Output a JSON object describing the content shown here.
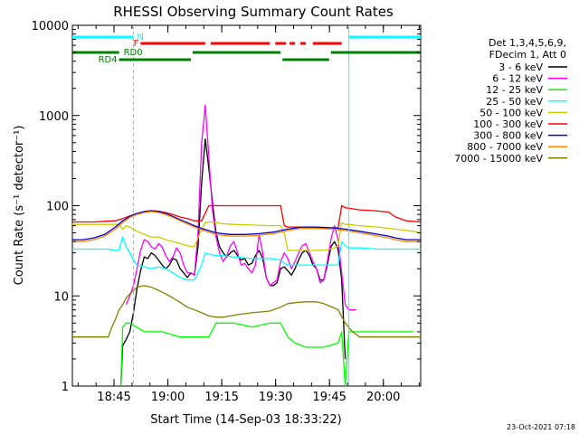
{
  "chart_data": {
    "type": "line",
    "title": "RHESSI Observing Summary Count Rates",
    "xlabel": "Start Time (14-Sep-03 18:33:22)",
    "ylabel": "Count Rate (s⁻¹ detector⁻¹)",
    "y_scale": "log",
    "ylim": [
      1,
      10000
    ],
    "xlim_minutes_since_start": [
      0,
      97
    ],
    "xticks": [
      {
        "label": "18:45",
        "minute": 11.6
      },
      {
        "label": "19:00",
        "minute": 26.6
      },
      {
        "label": "19:15",
        "minute": 41.6
      },
      {
        "label": "19:30",
        "minute": 56.6
      },
      {
        "label": "19:45",
        "minute": 71.6
      },
      {
        "label": "20:00",
        "minute": 86.6
      }
    ],
    "yticks": [
      "1",
      "10",
      "100",
      "1000",
      "10000"
    ],
    "legend_header": [
      "Det 1,3,4,5,6,9,",
      "FDecim 1, Att 0"
    ],
    "footer": "23-Oct-2021 07:18",
    "flags": [
      {
        "label": "N",
        "color": "#00FFFF",
        "segments": [
          [
            0,
            17
          ],
          [
            77,
            97
          ]
        ]
      },
      {
        "label": "F",
        "color": "#FF0000",
        "segments": [
          [
            19,
            37
          ],
          [
            38.5,
            55
          ],
          [
            56.5,
            59.5
          ],
          [
            60.5,
            62
          ],
          [
            63.5,
            65
          ],
          [
            67,
            75
          ]
        ]
      },
      {
        "label": "RD0",
        "color": "#008000",
        "segments": [
          [
            0,
            13
          ],
          [
            33.5,
            58
          ],
          [
            72,
            97
          ]
        ]
      },
      {
        "label": "RD4",
        "color": "#008000",
        "segments": [
          [
            13,
            33
          ],
          [
            58.5,
            71.5
          ]
        ]
      }
    ],
    "series": [
      {
        "name": "3 - 6 keV",
        "color": "#000000",
        "x": [
          13.5,
          14,
          15,
          16,
          17,
          18,
          19,
          20,
          21,
          22,
          23,
          24,
          25,
          26,
          27,
          28,
          29,
          30,
          31,
          32,
          33,
          34,
          35,
          36,
          37,
          38,
          39,
          40,
          41,
          42,
          43,
          44,
          45,
          46,
          47,
          48,
          49,
          50,
          51,
          52,
          53,
          54,
          55,
          56,
          57,
          58,
          59,
          60,
          61,
          62,
          63,
          64,
          65,
          66,
          67,
          68,
          69,
          70,
          71,
          72,
          73,
          74,
          75,
          76
        ],
        "values": [
          1,
          2.8,
          3.3,
          4.0,
          6.5,
          12,
          19,
          27,
          26,
          30,
          28,
          25,
          22,
          20,
          22,
          26,
          25,
          20,
          18,
          16,
          18,
          17,
          35,
          180,
          550,
          260,
          110,
          50,
          35,
          30,
          27,
          30,
          32,
          28,
          25,
          26,
          22,
          23,
          28,
          32,
          26,
          16,
          13,
          13,
          14,
          20,
          21,
          19,
          17,
          20,
          25,
          30,
          32,
          28,
          22,
          20,
          15,
          15,
          22,
          35,
          40,
          33,
          15,
          2
        ]
      },
      {
        "name": "6 - 12 keV",
        "color": "#FF00FF",
        "x": [
          15,
          16,
          17,
          18,
          19,
          20,
          21,
          22,
          23,
          24,
          25,
          26,
          27,
          28,
          29,
          30,
          31,
          32,
          33,
          34,
          35,
          36,
          37,
          38,
          39,
          40,
          41,
          42,
          43,
          44,
          45,
          46,
          47,
          48,
          49,
          50,
          51,
          52,
          53,
          54,
          55,
          56,
          57,
          58,
          59,
          60,
          61,
          62,
          63,
          64,
          65,
          66,
          67,
          68,
          69,
          70,
          71,
          72,
          73,
          74,
          75,
          76,
          77,
          78,
          79
        ],
        "values": [
          8,
          10,
          13,
          20,
          32,
          42,
          40,
          35,
          33,
          38,
          35,
          28,
          24,
          27,
          34,
          30,
          22,
          18,
          18,
          17,
          50,
          500,
          1300,
          350,
          90,
          45,
          30,
          24,
          28,
          36,
          40,
          30,
          22,
          23,
          20,
          18,
          22,
          48,
          30,
          16,
          13,
          14,
          15,
          24,
          30,
          26,
          20,
          24,
          30,
          36,
          38,
          30,
          24,
          20,
          14,
          15,
          24,
          42,
          60,
          42,
          18,
          8,
          7,
          7,
          7
        ]
      },
      {
        "name": "12 - 25 keV",
        "color": "#00FF00",
        "x": [
          13.5,
          14,
          15,
          16,
          20,
          25,
          30,
          35,
          38,
          40,
          45,
          50,
          55,
          58,
          60,
          62,
          65,
          70,
          74,
          75,
          76,
          77,
          80,
          85,
          90,
          95
        ],
        "values": [
          1,
          4.5,
          5,
          5,
          4,
          4,
          3.5,
          3.5,
          3.5,
          5,
          5,
          4.5,
          5,
          5,
          3.5,
          3,
          2.7,
          2.7,
          3,
          4,
          1,
          4,
          4,
          4,
          4,
          4
        ]
      },
      {
        "name": "25 - 50 keV",
        "color": "#00FFFF",
        "x": [
          0,
          5,
          10,
          12,
          13,
          14,
          15,
          16,
          17,
          18,
          20,
          22,
          24,
          26,
          28,
          30,
          32,
          34,
          36,
          37,
          38,
          40,
          42,
          45,
          50,
          55,
          58,
          59,
          60,
          65,
          70,
          73,
          74,
          75,
          76,
          77,
          80,
          85,
          90,
          95,
          97
        ],
        "values": [
          33,
          33,
          33,
          32,
          32,
          45,
          35,
          30,
          25,
          22,
          21,
          20,
          21,
          20,
          18,
          16,
          15,
          15,
          22,
          30,
          29,
          28,
          28,
          27,
          26,
          26,
          25,
          23,
          22,
          22,
          22,
          22,
          22,
          40,
          36,
          34,
          34,
          33,
          33,
          33,
          33
        ]
      },
      {
        "name": "50 - 100 keV",
        "color": "#CCCC00",
        "x": [
          0,
          5,
          10,
          12,
          13,
          14,
          15,
          16,
          17,
          18,
          20,
          22,
          24,
          26,
          28,
          30,
          32,
          34,
          36,
          37,
          38,
          40,
          42,
          45,
          50,
          55,
          58,
          59,
          60,
          65,
          70,
          73,
          74,
          75,
          76,
          77,
          80,
          85,
          90,
          95,
          97
        ],
        "values": [
          62,
          62,
          62,
          62,
          62,
          55,
          60,
          58,
          55,
          52,
          48,
          45,
          45,
          42,
          40,
          38,
          36,
          35,
          55,
          65,
          66,
          65,
          63,
          62,
          61,
          60,
          60,
          50,
          32,
          32,
          32,
          34,
          36,
          65,
          62,
          62,
          60,
          58,
          55,
          52,
          50
        ]
      },
      {
        "name": "100 - 300 keV",
        "color": "#FF0000",
        "x": [
          0,
          3,
          6,
          9,
          12,
          14,
          16,
          18,
          20,
          22,
          24,
          26,
          28,
          30,
          32,
          34,
          36,
          38,
          40,
          44,
          48,
          52,
          56,
          58,
          59,
          60,
          64,
          68,
          72,
          74,
          75,
          76,
          80,
          84,
          88,
          90,
          93,
          97
        ],
        "values": [
          66,
          66,
          66,
          67,
          68,
          72,
          77,
          82,
          86,
          88,
          87,
          84,
          80,
          75,
          72,
          68,
          68,
          100,
          100,
          100,
          100,
          100,
          100,
          100,
          60,
          58,
          58,
          57,
          57,
          57,
          100,
          95,
          90,
          88,
          85,
          75,
          68,
          66
        ]
      },
      {
        "name": "300 - 800 keV",
        "color": "#0000CC",
        "x": [
          0,
          3,
          6,
          9,
          12,
          14,
          16,
          18,
          20,
          22,
          24,
          26,
          28,
          30,
          32,
          34,
          36,
          38,
          40,
          44,
          48,
          52,
          56,
          58,
          60,
          64,
          68,
          72,
          74,
          76,
          80,
          84,
          88,
          90,
          93,
          97
        ],
        "values": [
          42,
          42,
          44,
          48,
          58,
          68,
          76,
          82,
          86,
          88,
          86,
          82,
          76,
          70,
          65,
          60,
          56,
          53,
          50,
          48,
          48,
          49,
          51,
          53,
          55,
          58,
          58,
          57,
          56,
          55,
          52,
          49,
          46,
          44,
          42,
          42
        ]
      },
      {
        "name": "800 - 7000 keV",
        "color": "#FF8800",
        "x": [
          0,
          3,
          6,
          9,
          12,
          14,
          16,
          18,
          20,
          22,
          24,
          26,
          28,
          30,
          32,
          34,
          36,
          38,
          40,
          44,
          48,
          52,
          56,
          58,
          60,
          64,
          68,
          72,
          74,
          76,
          80,
          84,
          88,
          90,
          93,
          97
        ],
        "values": [
          40,
          40,
          42,
          46,
          55,
          65,
          74,
          80,
          84,
          86,
          84,
          80,
          74,
          68,
          63,
          58,
          54,
          51,
          48,
          46,
          46,
          47,
          49,
          51,
          53,
          56,
          56,
          55,
          54,
          53,
          50,
          47,
          44,
          42,
          40,
          40
        ]
      },
      {
        "name": "7000 - 15000 keV",
        "color": "#808000",
        "x": [
          0,
          5,
          10,
          11,
          12,
          13,
          14,
          15,
          16,
          17,
          18,
          20,
          22,
          24,
          26,
          28,
          30,
          32,
          34,
          36,
          38,
          40,
          42,
          44,
          46,
          50,
          55,
          58,
          60,
          63,
          65,
          68,
          70,
          72,
          74,
          76,
          78,
          80,
          85,
          90,
          95,
          97
        ],
        "values": [
          3.5,
          3.5,
          3.5,
          4.5,
          5.5,
          7,
          8,
          9.5,
          10.5,
          11.5,
          12.5,
          13,
          12.5,
          11.5,
          10.5,
          9.5,
          8.5,
          7.5,
          7,
          6.5,
          6,
          5.8,
          5.8,
          6,
          6.2,
          6.5,
          6.8,
          7.5,
          8.2,
          8.5,
          8.6,
          8.6,
          8.2,
          7.6,
          7,
          5,
          4,
          3.5,
          3.5,
          3.5,
          3.5,
          3.5
        ]
      }
    ]
  }
}
